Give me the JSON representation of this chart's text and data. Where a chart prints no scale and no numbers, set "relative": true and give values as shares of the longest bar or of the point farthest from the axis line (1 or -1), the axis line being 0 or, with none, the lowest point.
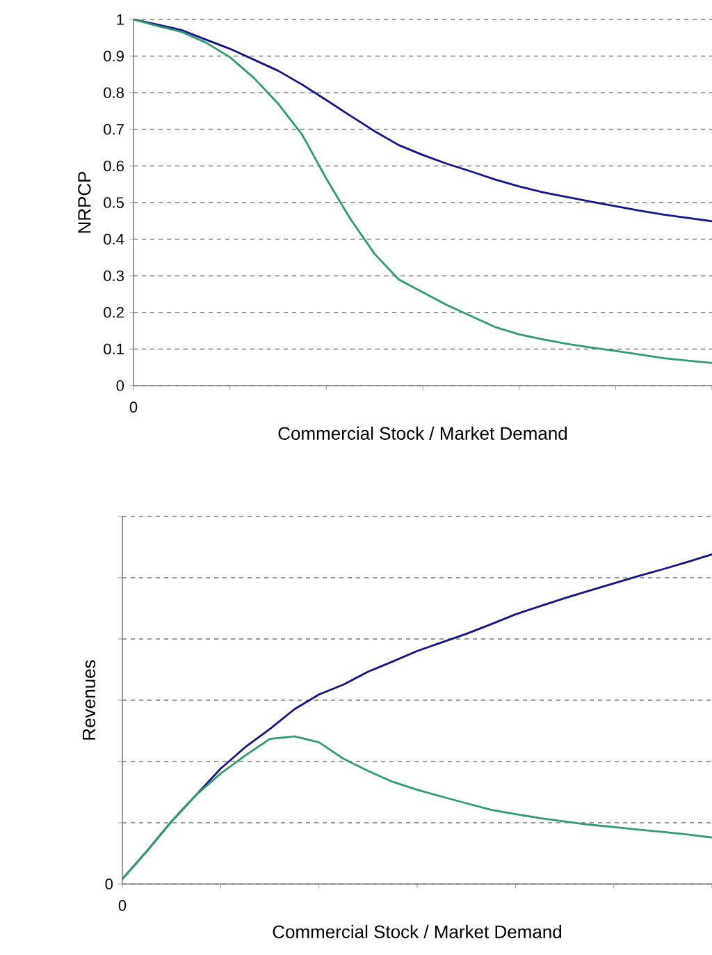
{
  "chart_data": [
    {
      "type": "line",
      "xlabel": "Commercial Stock / Market Demand",
      "ylabel": "NRPCP",
      "annotations": [
        "0"
      ],
      "ylim": [
        0,
        1
      ],
      "categories": [
        null,
        null,
        null,
        null,
        null,
        null,
        null,
        null,
        null,
        null,
        null,
        null,
        null,
        null,
        null,
        null,
        null,
        null,
        null,
        null,
        null,
        null,
        null,
        null,
        null
      ],
      "yticks": [
        0,
        0.1,
        0.2,
        0.3,
        0.4,
        0.5,
        0.6,
        0.7,
        0.8,
        0.9,
        1
      ],
      "grid": "y",
      "line_style": "solid",
      "series": [
        {
          "color": "#14148c",
          "values": [
            1,
            0.986,
            0.971,
            0.945,
            0.92,
            0.89,
            0.86,
            0.822,
            0.78,
            0.737,
            0.695,
            0.657,
            0.63,
            0.606,
            0.585,
            0.563,
            0.544,
            0.528,
            0.515,
            0.502,
            0.49,
            0.478,
            0.467,
            0.458,
            0.449
          ]
        },
        {
          "color": "#2e9e6e",
          "values": [
            1,
            0.982,
            0.966,
            0.937,
            0.897,
            0.84,
            0.77,
            0.685,
            0.565,
            0.455,
            0.36,
            0.29,
            0.255,
            0.22,
            0.19,
            0.16,
            0.14,
            0.126,
            0.114,
            0.104,
            0.095,
            0.085,
            0.075,
            0.068,
            0.062
          ]
        }
      ]
    },
    {
      "type": "line",
      "xlabel": "Commercial Stock / Market Demand",
      "ylabel": "Revenues",
      "relative": true,
      "annotations": [
        "0",
        "0"
      ],
      "categories": [
        null,
        null,
        null,
        null,
        null,
        null,
        null,
        null,
        null,
        null,
        null,
        null,
        null,
        null,
        null,
        null,
        null,
        null,
        null,
        null,
        null,
        null,
        null,
        null,
        null
      ],
      "grid": "y",
      "line_style": "solid",
      "series": [
        {
          "color": "#14148c",
          "values": [
            0.015,
            0.1,
            0.19,
            0.27,
            0.35,
            0.415,
            0.47,
            0.53,
            0.575,
            0.605,
            0.644,
            0.675,
            0.707,
            0.733,
            0.759,
            0.788,
            0.818,
            0.843,
            0.867,
            0.89,
            0.912,
            0.934,
            0.955,
            0.977,
            1
          ]
        },
        {
          "color": "#2e9e6e",
          "values": [
            0.015,
            0.1,
            0.19,
            0.27,
            0.335,
            0.39,
            0.44,
            0.448,
            0.43,
            0.38,
            0.343,
            0.31,
            0.286,
            0.265,
            0.245,
            0.225,
            0.212,
            0.2,
            0.19,
            0.18,
            0.173,
            0.165,
            0.158,
            0.15,
            0.141
          ]
        }
      ]
    }
  ]
}
